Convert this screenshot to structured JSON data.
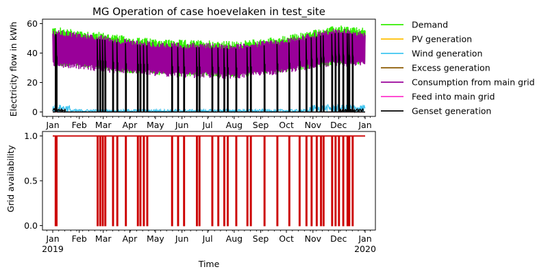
{
  "chart_data": [
    {
      "type": "line",
      "title": "MG Operation of case hoevelaken in test_site",
      "xlabel": "",
      "ylabel": "Electricity flow in kWh",
      "x_range": [
        "2018-12-20",
        "2020-01-13"
      ],
      "ylim": [
        -3,
        63
      ],
      "yticks": [
        0,
        20,
        40,
        60
      ],
      "ytick_labels": [
        "0",
        "20",
        "40",
        "60"
      ],
      "xticks": [
        "2019-01-01",
        "2019-02-01",
        "2019-03-01",
        "2019-04-01",
        "2019-05-01",
        "2019-06-01",
        "2019-07-01",
        "2019-08-01",
        "2019-09-01",
        "2019-10-01",
        "2019-11-01",
        "2019-12-01",
        "2020-01-01"
      ],
      "xtick_labels": [
        "Jan",
        "Feb",
        "Mar",
        "Apr",
        "May",
        "Jun",
        "Jul",
        "Aug",
        "Sep",
        "Oct",
        "Nov",
        "Dec",
        "Jan"
      ],
      "grid": false,
      "legend_position": "outside-right",
      "series": [
        {
          "name": "Demand",
          "color": "#33ee00",
          "pattern": "daily band",
          "upper_monthly": [
            56,
            54,
            52,
            49,
            48,
            47,
            47,
            46,
            48,
            50,
            54,
            57,
            55
          ],
          "lower_monthly": [
            33,
            32,
            30,
            28,
            27,
            26,
            26,
            25,
            27,
            29,
            32,
            34,
            33
          ]
        },
        {
          "name": "PV generation",
          "color": "#ffbf00",
          "values_const": 0
        },
        {
          "name": "Wind generation",
          "color": "#3ec4f0",
          "pattern": "small fluctuation",
          "range": [
            0,
            5
          ]
        },
        {
          "name": "Excess generation",
          "color": "#8b5a00",
          "values_const": 0
        },
        {
          "name": "Consumption from main grid",
          "color": "#990099",
          "pattern": "daily band",
          "upper_monthly": [
            54,
            52,
            50,
            47,
            46,
            45,
            45,
            44,
            46,
            48,
            52,
            55,
            53
          ],
          "lower_monthly": [
            32,
            31,
            29,
            27,
            26,
            25,
            25,
            24,
            26,
            28,
            31,
            33,
            32
          ]
        },
        {
          "name": "Feed into main grid",
          "color": "#ff33cc",
          "values_const": 0
        },
        {
          "name": "Genset generation",
          "color": "#000000",
          "pattern": "spikes during grid outages",
          "spike_peak": 52
        }
      ]
    },
    {
      "type": "line",
      "xlabel": "Time",
      "ylabel": "Grid availability",
      "ylim": [
        -0.05,
        1.05
      ],
      "yticks": [
        0,
        0.5,
        1
      ],
      "ytick_labels": [
        "0.0",
        "0.5",
        "1.0"
      ],
      "xticks": [
        "2019-01-01",
        "2019-02-01",
        "2019-03-01",
        "2019-04-01",
        "2019-05-01",
        "2019-06-01",
        "2019-07-01",
        "2019-08-01",
        "2019-09-01",
        "2019-10-01",
        "2019-11-01",
        "2019-12-01",
        "2020-01-01"
      ],
      "xtick_labels": [
        "Jan",
        "Feb",
        "Mar",
        "Apr",
        "May",
        "Jun",
        "Jul",
        "Aug",
        "Sep",
        "Oct",
        "Nov",
        "Dec",
        "Jan"
      ],
      "year_labels": [
        "2019",
        "2020"
      ],
      "grid": false,
      "series": [
        {
          "name": "Grid availability",
          "color": "#cc0000",
          "baseline": 1,
          "outage_value": 0,
          "outage_days": [
            3,
            4,
            52,
            55,
            58,
            61,
            70,
            75,
            85,
            99,
            102,
            106,
            110,
            139,
            146,
            153,
            168,
            171,
            186,
            193,
            200,
            204,
            214,
            227,
            231,
            247,
            262,
            276,
            288,
            296,
            302,
            308,
            313,
            316,
            326,
            330,
            334,
            339,
            344,
            346,
            350
          ]
        }
      ]
    }
  ]
}
